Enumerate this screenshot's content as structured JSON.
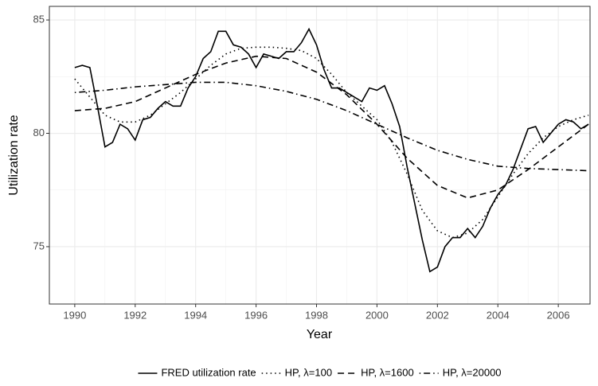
{
  "chart_data": {
    "type": "line",
    "x_label": "Year",
    "y_label": "Utilization rate",
    "xlim": [
      1989.16,
      2007.05
    ],
    "ylim": [
      72.47,
      85.6
    ],
    "xticks": [
      1990,
      1992,
      1994,
      1996,
      1998,
      2000,
      2002,
      2004,
      2006
    ],
    "xminorticks": [
      1991,
      1993,
      1995,
      1997,
      1999,
      2001,
      2003,
      2005
    ],
    "yticks": [
      75,
      80,
      85
    ],
    "yminorticks": [
      77.5,
      82.5
    ],
    "grid": true,
    "legend_position": "bottom",
    "series": [
      {
        "name": "FRED utilization rate",
        "color": "#000000",
        "dash": "solid",
        "x": [
          1990,
          1990.25,
          1990.5,
          1990.75,
          1991,
          1991.25,
          1991.5,
          1991.75,
          1992,
          1992.25,
          1992.5,
          1992.75,
          1993,
          1993.25,
          1993.5,
          1993.75,
          1994,
          1994.25,
          1994.5,
          1994.75,
          1995,
          1995.25,
          1995.5,
          1995.75,
          1996,
          1996.25,
          1996.5,
          1996.75,
          1997,
          1997.25,
          1997.5,
          1997.75,
          1998,
          1998.25,
          1998.5,
          1998.75,
          1999,
          1999.25,
          1999.5,
          1999.75,
          2000,
          2000.25,
          2000.5,
          2000.75,
          2001,
          2001.25,
          2001.5,
          2001.75,
          2002,
          2002.25,
          2002.5,
          2002.75,
          2003,
          2003.25,
          2003.5,
          2003.75,
          2004,
          2004.25,
          2004.5,
          2004.75,
          2005,
          2005.25,
          2005.5,
          2005.75,
          2006,
          2006.25,
          2006.5,
          2006.75,
          2007
        ],
        "values": [
          82.9,
          83.0,
          82.9,
          81.2,
          79.4,
          79.6,
          80.4,
          80.2,
          79.7,
          80.6,
          80.7,
          81.1,
          81.4,
          81.2,
          81.2,
          82.0,
          82.5,
          83.3,
          83.6,
          84.5,
          84.5,
          83.9,
          83.8,
          83.5,
          82.9,
          83.5,
          83.4,
          83.3,
          83.6,
          83.6,
          84.0,
          84.6,
          83.9,
          82.8,
          82.0,
          82.0,
          81.8,
          81.6,
          81.4,
          82.0,
          81.9,
          82.1,
          81.3,
          80.3,
          78.5,
          76.9,
          75.3,
          73.9,
          74.1,
          75.0,
          75.4,
          75.4,
          75.8,
          75.4,
          75.9,
          76.7,
          77.3,
          77.7,
          78.4,
          79.3,
          80.2,
          80.3,
          79.6,
          80.0,
          80.4,
          80.6,
          80.5,
          80.2,
          80.4
        ]
      },
      {
        "name": "HP, λ=100",
        "color": "#000000",
        "dash": "dotted",
        "x": [
          1990,
          1990.5,
          1991,
          1991.5,
          1992,
          1992.5,
          1993,
          1993.5,
          1994,
          1994.5,
          1995,
          1995.5,
          1996,
          1996.5,
          1997,
          1997.5,
          1998,
          1998.5,
          1999,
          1999.5,
          2000,
          2000.5,
          2001,
          2001.5,
          2002,
          2002.5,
          2003,
          2003.5,
          2004,
          2004.5,
          2005,
          2005.5,
          2006,
          2006.5,
          2007
        ],
        "values": [
          82.4,
          81.6,
          80.8,
          80.5,
          80.5,
          80.8,
          81.3,
          81.8,
          82.4,
          83.0,
          83.5,
          83.75,
          83.8,
          83.8,
          83.75,
          83.65,
          83.3,
          82.6,
          81.8,
          81.2,
          80.6,
          79.6,
          78.2,
          76.6,
          75.7,
          75.4,
          75.6,
          76.2,
          77.2,
          78.2,
          79.1,
          79.8,
          80.3,
          80.6,
          80.8
        ]
      },
      {
        "name": "HP, λ=1600",
        "color": "#000000",
        "dash": "dashed",
        "x": [
          1990,
          1991,
          1992,
          1993,
          1994,
          1995,
          1996,
          1997,
          1998,
          1999,
          2000,
          2001,
          2002,
          2003,
          2004,
          2005,
          2006,
          2007
        ],
        "values": [
          81.0,
          81.1,
          81.4,
          82.0,
          82.6,
          83.1,
          83.4,
          83.3,
          82.7,
          81.7,
          80.4,
          78.9,
          77.7,
          77.15,
          77.5,
          78.4,
          79.4,
          80.4
        ]
      },
      {
        "name": "HP, λ=20000",
        "color": "#000000",
        "dash": "dotdash",
        "x": [
          1990,
          1991,
          1992,
          1993,
          1994,
          1995,
          1996,
          1997,
          1998,
          1999,
          2000,
          2001,
          2002,
          2003,
          2004,
          2005,
          2006,
          2007
        ],
        "values": [
          81.8,
          81.9,
          82.05,
          82.15,
          82.25,
          82.25,
          82.1,
          81.85,
          81.5,
          81.0,
          80.4,
          79.8,
          79.25,
          78.85,
          78.55,
          78.45,
          78.4,
          78.35
        ]
      }
    ]
  }
}
